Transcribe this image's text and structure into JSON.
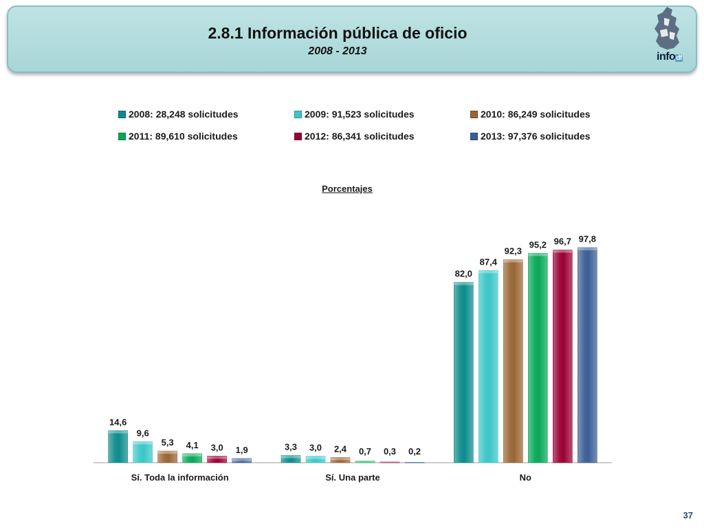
{
  "header": {
    "title": "2.8.1 Información pública de oficio",
    "subtitle": "2008 - 2013",
    "logo_text": "info",
    "logo_suffix": "df"
  },
  "page_number": "37",
  "colors": {
    "header_bg": "#aad7d9",
    "series": [
      "#0e8c8c",
      "#3cc6c8",
      "#986634",
      "#09a858",
      "#9a0035",
      "#3a5f96"
    ]
  },
  "chart_data": {
    "type": "bar",
    "title": "Porcentajes",
    "categories": [
      "Sí. Toda la información",
      "Sí. Una parte",
      "No"
    ],
    "series": [
      {
        "name": "2008: 28,248 solicitudes",
        "values": [
          14.6,
          3.3,
          82.0
        ],
        "labels": [
          "14,6",
          "3,3",
          "82,0"
        ]
      },
      {
        "name": "2009: 91,523 solicitudes",
        "values": [
          9.6,
          3.0,
          87.4
        ],
        "labels": [
          "9,6",
          "3,0",
          "87,4"
        ]
      },
      {
        "name": "2010: 86,249 solicitudes",
        "values": [
          5.3,
          2.4,
          92.3
        ],
        "labels": [
          "5,3",
          "2,4",
          "92,3"
        ]
      },
      {
        "name": "2011: 89,610 solicitudes",
        "values": [
          4.1,
          0.7,
          95.2
        ],
        "labels": [
          "4,1",
          "0,7",
          "95,2"
        ]
      },
      {
        "name": "2012: 86,341 solicitudes",
        "values": [
          3.0,
          0.3,
          96.7
        ],
        "labels": [
          "3,0",
          "0,3",
          "96,7"
        ]
      },
      {
        "name": "2013: 97,376 solicitudes",
        "values": [
          1.9,
          0.2,
          97.8
        ],
        "labels": [
          "1,9",
          "0,2",
          "97,8"
        ]
      }
    ],
    "ylim": [
      0,
      100
    ],
    "grid": false,
    "legend_position": "top"
  }
}
